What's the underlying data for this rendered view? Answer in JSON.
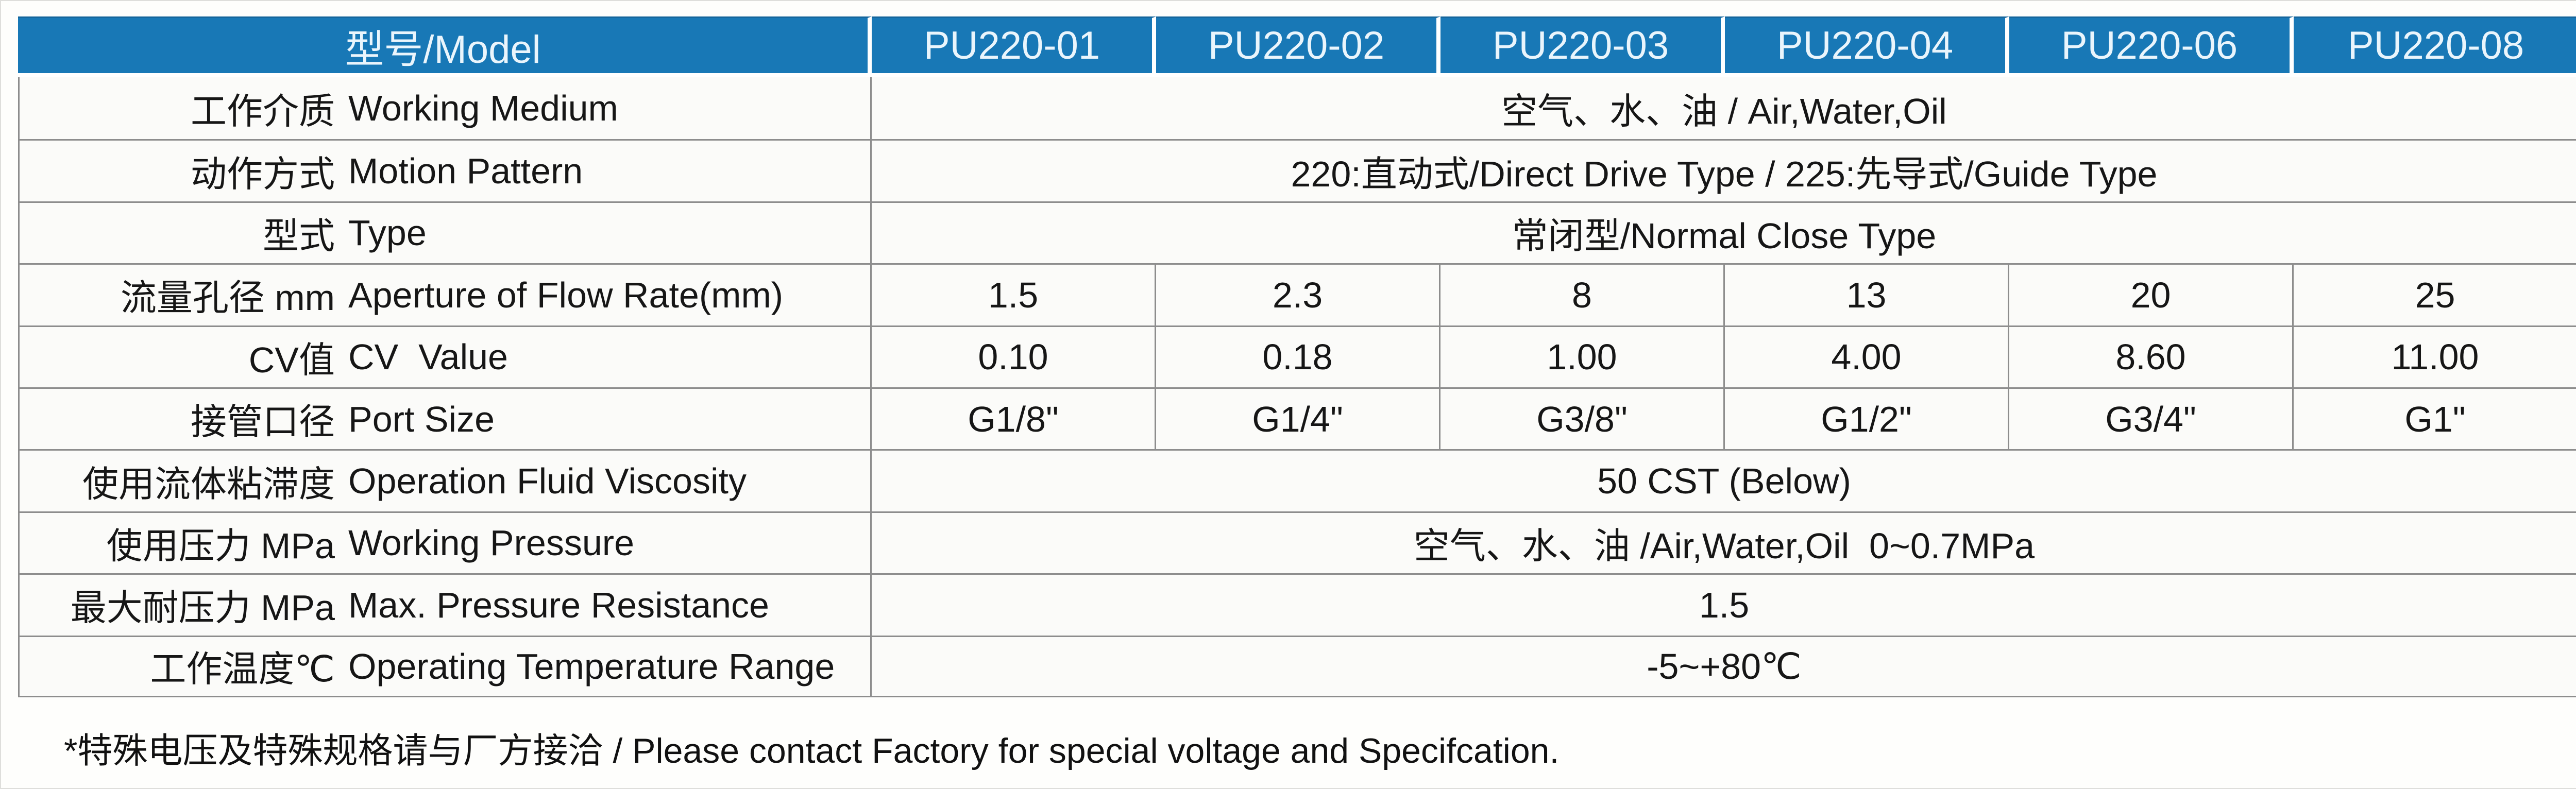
{
  "table": {
    "header": {
      "label": "型号/Model",
      "models": [
        "PU220-01",
        "PU220-02",
        "PU220-03",
        "PU220-04",
        "PU220-06",
        "PU220-08"
      ]
    },
    "rows": [
      {
        "zh": "工作介质",
        "en": "Working Medium",
        "value": "空气、水、油 / Air,Water,Oil"
      },
      {
        "zh": "动作方式",
        "en": "Motion Pattern",
        "value": "220:直动式/Direct Drive Type / 225:先导式/Guide Type"
      },
      {
        "zh": "型式",
        "en": "Type",
        "value": "常闭型/Normal Close Type"
      },
      {
        "zh": "流量孔径 mm",
        "en": "Aperture of Flow Rate(mm)",
        "values": [
          "1.5",
          "2.3",
          "8",
          "13",
          "20",
          "25"
        ]
      },
      {
        "zh": "CV值",
        "en": "CV  Value",
        "values": [
          "0.10",
          "0.18",
          "1.00",
          "4.00",
          "8.60",
          "11.00"
        ]
      },
      {
        "zh": "接管口径",
        "en": "Port Size",
        "values": [
          "G1/8\"",
          "G1/4\"",
          "G3/8\"",
          "G1/2\"",
          "G3/4\"",
          "G1\""
        ]
      },
      {
        "zh": "使用流体粘滞度",
        "en": "Operation Fluid Viscosity",
        "value": "50 CST (Below)"
      },
      {
        "zh": "使用压力 MPa",
        "en": "Working Pressure",
        "value": "空气、水、油 /Air,Water,Oil  0~0.7MPa"
      },
      {
        "zh": "最大耐压力 MPa",
        "en": "Max. Pressure Resistance",
        "value": "1.5"
      },
      {
        "zh": "工作温度℃",
        "en": "Operating Temperature Range",
        "value": "-5~+80℃"
      }
    ]
  },
  "footnote": "*特殊电压及特殊规格请与厂方接洽 / Please contact Factory for special voltage and Specifcation.",
  "colors": {
    "header_bg": "#1878B6",
    "header_text": "#EAF5FC",
    "grid_line": "#8D8D8D",
    "cell_bg": "#FBFBF9",
    "text": "#161616"
  }
}
